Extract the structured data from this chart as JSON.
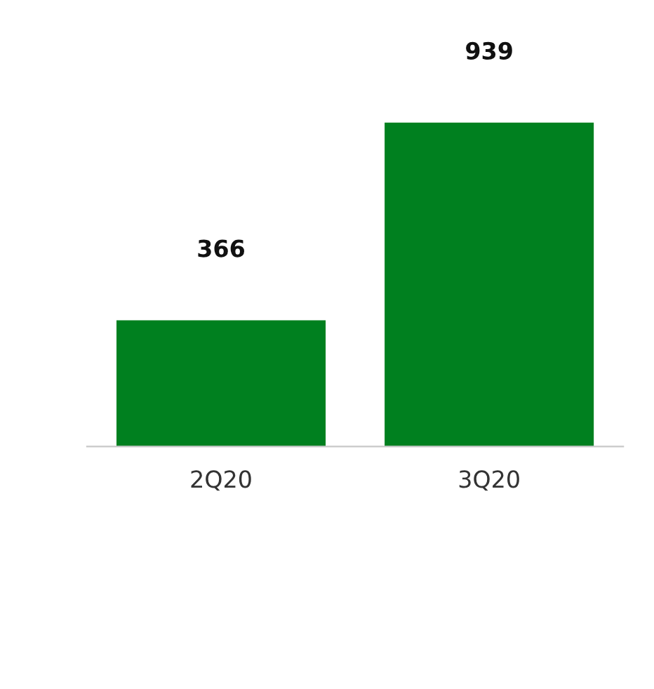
{
  "chart_data": {
    "type": "bar",
    "categories": [
      "2Q20",
      "3Q20"
    ],
    "values": [
      366,
      939
    ],
    "color": "#00801f",
    "data_labels": true,
    "grid": false,
    "legend": false
  }
}
